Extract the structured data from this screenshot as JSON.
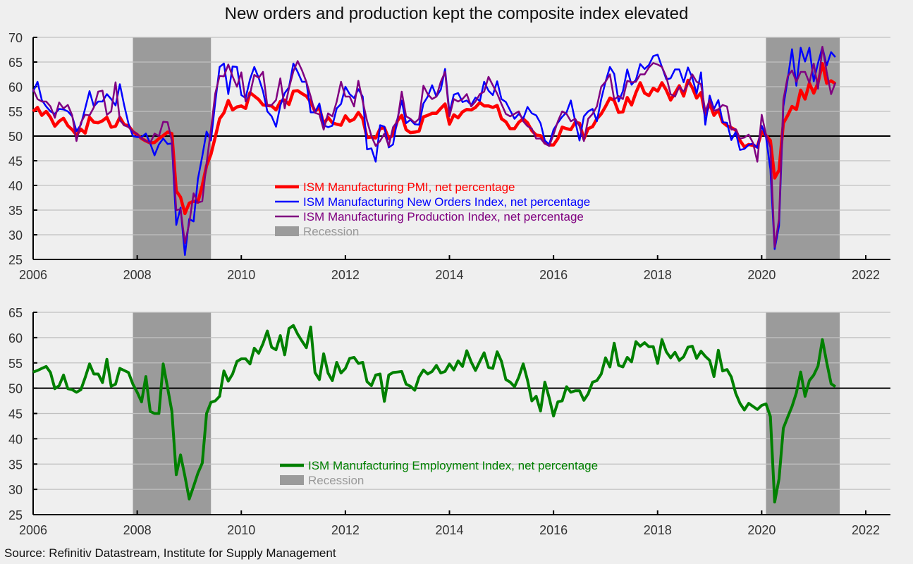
{
  "title": "New orders and production kept the composite index elevated",
  "source": "Source: Refinitiv Datastream, Institute for Supply Management",
  "colors": {
    "pmi": "#ff0000",
    "new_orders": "#0000ff",
    "production": "#800080",
    "employment": "#008000",
    "recession": "#9b9b9b",
    "recession_label": "#999999",
    "background": "#efefef"
  },
  "chart_data": [
    {
      "type": "line",
      "title": "",
      "xlabel": "",
      "ylabel": "",
      "x_start": "2006-01",
      "x_frequency": "monthly",
      "xlim": [
        2006,
        2022.5
      ],
      "ylim": [
        25,
        70
      ],
      "yticks": [
        25,
        30,
        35,
        40,
        45,
        50,
        55,
        60,
        65,
        70
      ],
      "xticks": [
        "2006",
        "2008",
        "2010",
        "2012",
        "2014",
        "2016",
        "2018",
        "2020",
        "2022"
      ],
      "reference_line": 50,
      "grid": true,
      "legend_position": "center-left",
      "recessions": [
        {
          "start": 2007.917,
          "end": 2009.417
        },
        {
          "start": 2020.083,
          "end": 2021.5
        }
      ],
      "series": [
        {
          "name": "ISM Manufacturing PMI, net percentage",
          "key": "pmi",
          "values": [
            55.0,
            55.8,
            54.2,
            55.0,
            53.8,
            52.0,
            53.0,
            53.6,
            52.1,
            51.3,
            50.2,
            51.4,
            50.6,
            53.8,
            52.8,
            52.7,
            53.1,
            53.8,
            51.8,
            52.0,
            53.8,
            52.3,
            52.1,
            50.9,
            50.3,
            49.5,
            49.0,
            48.6,
            48.7,
            49.5,
            50.1,
            50.8,
            50.5,
            38.9,
            37.6,
            34.3,
            36.4,
            36.8,
            36.6,
            40.0,
            44.0,
            46.3,
            49.8,
            53.5,
            54.7,
            57.2,
            55.3,
            55.9,
            56.1,
            55.6,
            58.8,
            58.1,
            57.4,
            56.3,
            56.2,
            56.1,
            55.3,
            57.0,
            57.3,
            56.4,
            59.1,
            59.2,
            58.6,
            58.1,
            56.9,
            55.0,
            55.8,
            52.4,
            53.8,
            52.7,
            52.4,
            52.2,
            54.1,
            53.0,
            53.4,
            54.8,
            53.5,
            49.7,
            49.8,
            49.6,
            51.5,
            51.7,
            49.5,
            50.2,
            53.1,
            54.2,
            51.3,
            50.7,
            50.8,
            51.0,
            53.9,
            54.2,
            54.6,
            54.6,
            55.6,
            56.5,
            52.4,
            54.3,
            53.7,
            54.9,
            55.4,
            55.3,
            55.8,
            56.8,
            56.1,
            56.1,
            55.8,
            56.2,
            53.5,
            52.9,
            51.5,
            51.5,
            52.8,
            53.5,
            52.7,
            51.1,
            50.2,
            50.1,
            48.6,
            48.2,
            48.2,
            49.5,
            51.8,
            51.5,
            51.3,
            52.8,
            52.6,
            49.4,
            51.5,
            51.9,
            53.5,
            54.5,
            56.0,
            57.7,
            57.2,
            54.8,
            54.9,
            57.8,
            56.3,
            58.8,
            60.8,
            58.7,
            58.2,
            59.7,
            59.1,
            60.8,
            59.3,
            57.3,
            58.7,
            60.2,
            58.1,
            61.3,
            59.8,
            57.7,
            58.8,
            54.3,
            56.6,
            54.2,
            55.3,
            52.8,
            52.1,
            51.7,
            51.2,
            49.1,
            47.8,
            48.3,
            48.1,
            47.8,
            50.9,
            50.1,
            49.1,
            41.5,
            43.1,
            52.6,
            54.2,
            56.0,
            55.4,
            59.3,
            57.5,
            60.7,
            58.7,
            60.8,
            64.7,
            60.7,
            61.2,
            60.6
          ]
        },
        {
          "name": "ISM Manufacturing New Orders Index, net percentage",
          "key": "new_orders",
          "values": [
            59.0,
            61.0,
            57.3,
            56.0,
            55.0,
            54.5,
            55.5,
            55.4,
            55.0,
            54.0,
            51.0,
            52.3,
            55.6,
            59.1,
            56.0,
            57.0,
            57.0,
            58.5,
            57.5,
            56.2,
            60.5,
            56.2,
            52.5,
            50.0,
            49.8,
            49.8,
            50.5,
            48.5,
            46.1,
            48.3,
            49.5,
            48.4,
            48.5,
            32.0,
            35.5,
            25.9,
            33.2,
            32.7,
            41.3,
            45.9,
            50.9,
            49.1,
            56.8,
            64.0,
            64.7,
            58.5,
            64.1,
            64.0,
            58.3,
            57.7,
            61.5,
            64.0,
            61.8,
            59.1,
            55.0,
            54.0,
            51.9,
            56.2,
            58.7,
            59.9,
            64.7,
            63.0,
            61.0,
            61.0,
            54.8,
            54.8,
            56.6,
            52.2,
            51.8,
            52.1,
            55.6,
            56.5,
            60.0,
            58.5,
            57.7,
            59.5,
            58.0,
            47.3,
            47.5,
            44.8,
            52.2,
            51.9,
            47.7,
            48.3,
            53.5,
            57.2,
            52.6,
            53.3,
            52.4,
            52.3,
            56.6,
            58.0,
            60.3,
            58.0,
            59.4,
            63.6,
            54.7,
            58.4,
            58.7,
            56.9,
            57.2,
            56.3,
            57.8,
            57.1,
            61.0,
            59.2,
            58.3,
            61.1,
            57.5,
            56.9,
            55.2,
            53.5,
            54.5,
            53.5,
            55.9,
            54.6,
            54.2,
            52.6,
            49.1,
            48.3,
            51.3,
            52.7,
            53.9,
            54.8,
            57.2,
            53.0,
            49.1,
            54.0,
            55.0,
            55.5,
            53.0,
            57.5,
            61.0,
            64.0,
            62.6,
            57.0,
            59.1,
            63.5,
            60.4,
            61.4,
            64.6,
            63.6,
            64.4,
            66.2,
            66.5,
            64.0,
            61.5,
            61.7,
            63.5,
            63.5,
            60.9,
            63.9,
            61.8,
            58.6,
            62.9,
            52.3,
            58.2,
            55.5,
            57.3,
            52.8,
            52.7,
            49.2,
            50.8,
            47.2,
            47.4,
            48.2,
            48.5,
            47.6,
            52.1,
            49.8,
            43.3,
            27.1,
            31.8,
            56.0,
            61.5,
            67.6,
            60.2,
            67.9,
            65.1,
            67.9,
            61.1,
            64.8,
            68.0,
            64.3,
            67.0,
            66.0
          ]
        },
        {
          "name": "ISM Manufacturing Production Index, net percentage",
          "key": "production",
          "values": [
            59.5,
            57.5,
            57.0,
            57.0,
            56.0,
            53.7,
            56.8,
            55.6,
            56.3,
            54.2,
            49.0,
            52.7,
            54.3,
            54.2,
            55.8,
            59.0,
            59.2,
            54.3,
            55.0,
            60.9,
            53.2,
            52.2,
            51.8,
            51.0,
            50.4,
            49.5,
            49.0,
            48.6,
            50.5,
            50.0,
            52.9,
            52.8,
            49.0,
            35.0,
            35.2,
            28.3,
            32.3,
            38.4,
            36.5,
            36.8,
            44.5,
            51.3,
            58.6,
            62.2,
            62.1,
            64.5,
            62.1,
            60.0,
            62.9,
            57.0,
            58.5,
            62.4,
            61.8,
            63.0,
            56.1,
            56.3,
            57.3,
            61.7,
            55.6,
            59.7,
            63.1,
            65.2,
            63.3,
            61.0,
            58.0,
            54.7,
            54.4,
            51.3,
            54.6,
            54.0,
            57.0,
            61.0,
            58.0,
            58.0,
            56.0,
            61.2,
            57.0,
            53.1,
            50.0,
            48.0,
            49.0,
            50.5,
            48.0,
            51.8,
            53.0,
            59.0,
            54.0,
            53.5,
            52.7,
            53.5,
            60.2,
            58.5,
            57.5,
            58.0,
            61.0,
            63.0,
            54.0,
            57.5,
            57.0,
            57.5,
            58.5,
            56.0,
            57.0,
            58.5,
            59.0,
            62.0,
            60.3,
            58.6,
            56.5,
            54.5,
            54.0,
            54.5,
            55.0,
            53.0,
            52.0,
            51.5,
            49.5,
            49.5,
            48.5,
            48.0,
            50.3,
            53.0,
            55.0,
            54.5,
            53.0,
            53.5,
            52.0,
            49.0,
            53.5,
            54.5,
            56.0,
            60.0,
            61.0,
            62.5,
            57.4,
            58.1,
            57.5,
            61.2,
            60.9,
            61.0,
            62.5,
            62.5,
            63.9,
            64.8,
            64.5,
            64.0,
            62.0,
            58.5,
            58.0,
            60.0,
            59.0,
            60.5,
            62.5,
            61.0,
            60.5,
            55.0,
            57.3,
            55.1,
            55.4,
            56.3,
            56.0,
            51.3,
            51.4,
            49.5,
            49.7,
            50.3,
            48.6,
            44.8,
            54.3,
            50.3,
            47.7,
            27.5,
            33.2,
            57.3,
            62.1,
            63.3,
            61.0,
            63.0,
            63.0,
            60.8,
            64.7,
            59.6,
            68.1,
            63.0,
            58.5,
            60.8
          ]
        }
      ]
    },
    {
      "type": "line",
      "title": "",
      "xlabel": "",
      "ylabel": "",
      "x_start": "2006-01",
      "x_frequency": "monthly",
      "xlim": [
        2006,
        2022.5
      ],
      "ylim": [
        25,
        65
      ],
      "yticks": [
        25,
        30,
        35,
        40,
        45,
        50,
        55,
        60,
        65
      ],
      "xticks": [
        "2006",
        "2008",
        "2010",
        "2012",
        "2014",
        "2016",
        "2018",
        "2020",
        "2022"
      ],
      "reference_line": 50,
      "grid": true,
      "legend_position": "center-left",
      "recessions": [
        {
          "start": 2007.917,
          "end": 2009.417
        },
        {
          "start": 2020.083,
          "end": 2021.5
        }
      ],
      "series": [
        {
          "name": "ISM Manufacturing Employment Index, net percentage",
          "key": "employment",
          "values": [
            53.2,
            53.5,
            53.9,
            54.3,
            53.1,
            49.9,
            50.5,
            52.6,
            49.9,
            49.7,
            49.2,
            49.7,
            52.1,
            54.8,
            52.8,
            52.8,
            51.1,
            55.7,
            50.4,
            50.8,
            53.9,
            53.5,
            53.1,
            50.8,
            49.2,
            47.3,
            52.3,
            45.4,
            45.0,
            45.0,
            54.8,
            50.1,
            45.4,
            32.9,
            36.8,
            32.6,
            28.1,
            30.6,
            33.2,
            35.2,
            45.0,
            47.2,
            47.5,
            48.4,
            53.4,
            51.4,
            52.8,
            55.3,
            55.8,
            55.8,
            54.8,
            57.9,
            56.9,
            58.8,
            61.3,
            58.1,
            57.6,
            60.4,
            56.6,
            61.8,
            62.4,
            60.7,
            59.3,
            58.0,
            62.1,
            53.1,
            51.7,
            56.8,
            53.0,
            51.5,
            55.1,
            53.0,
            53.9,
            55.9,
            56.1,
            54.9,
            55.1,
            51.3,
            50.5,
            52.6,
            52.8,
            47.4,
            52.6,
            53.1,
            53.2,
            53.3,
            50.8,
            50.4,
            49.6,
            52.2,
            53.6,
            52.8,
            53.3,
            54.5,
            53.0,
            53.3,
            54.8,
            53.6,
            55.4,
            54.3,
            57.4,
            55.2,
            53.5,
            55.3,
            57.0,
            54.1,
            53.9,
            57.2,
            55.3,
            51.7,
            51.2,
            50.3,
            52.2,
            54.8,
            51.6,
            47.5,
            48.4,
            45.5,
            51.2,
            48.1,
            44.5,
            47.3,
            47.5,
            50.3,
            49.2,
            49.5,
            49.5,
            47.6,
            48.9,
            51.2,
            51.5,
            52.8,
            56.0,
            54.2,
            58.9,
            54.5,
            54.2,
            56.1,
            55.2,
            59.2,
            58.3,
            59.0,
            58.2,
            58.2,
            54.9,
            59.6,
            57.2,
            56.0,
            57.1,
            55.5,
            56.2,
            58.1,
            58.3,
            55.9,
            57.3,
            56.3,
            55.5,
            52.3,
            57.5,
            53.4,
            53.7,
            52.2,
            49.0,
            47.0,
            45.7,
            47.0,
            46.4,
            45.8,
            46.6,
            46.9,
            44.4,
            27.5,
            32.1,
            42.1,
            44.3,
            46.4,
            49.1,
            53.2,
            48.4,
            51.5,
            52.6,
            54.4,
            59.6,
            55.1,
            50.9,
            50.3
          ]
        }
      ]
    }
  ],
  "legend_top": [
    {
      "label": "ISM Manufacturing PMI, net percentage",
      "key": "pmi",
      "kind": "line-thick"
    },
    {
      "label": "ISM Manufacturing New Orders Index, net percentage",
      "key": "new_orders",
      "kind": "line"
    },
    {
      "label": "ISM Manufacturing Production Index, net percentage",
      "key": "production",
      "kind": "line"
    },
    {
      "label": "Recession",
      "key": "recession",
      "kind": "box"
    }
  ],
  "legend_bottom": [
    {
      "label": "ISM Manufacturing Employment Index, net percentage",
      "key": "employment",
      "kind": "line-thick"
    },
    {
      "label": "Recession",
      "key": "recession",
      "kind": "box"
    }
  ]
}
